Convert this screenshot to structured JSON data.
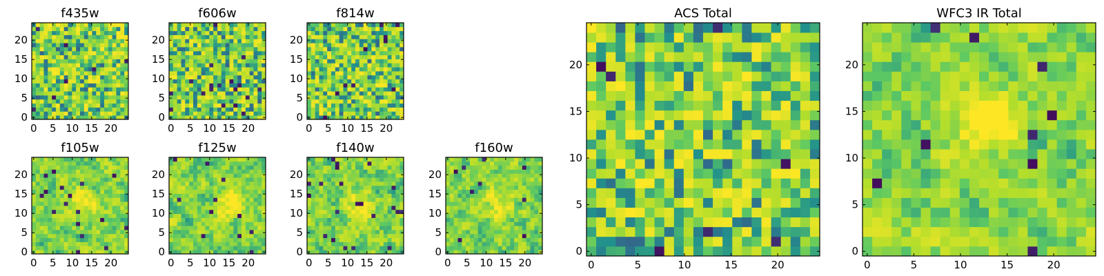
{
  "figure": {
    "colormap": "viridis",
    "colormap_stops": [
      "#440154",
      "#3b528b",
      "#21918c",
      "#5ec962",
      "#b5de2b",
      "#fde725"
    ]
  },
  "chart_data": [
    {
      "id": "f435w",
      "type": "heatmap",
      "title": "f435w",
      "grid_size": 24,
      "xlim": [
        0,
        24
      ],
      "ylim": [
        0,
        24
      ],
      "xticks": [
        0,
        5,
        10,
        15,
        20
      ],
      "yticks": [
        0,
        5,
        10,
        15,
        20
      ],
      "texture": "fine-noise",
      "smooth": 0,
      "seed": 11
    },
    {
      "id": "f606w",
      "type": "heatmap",
      "title": "f606w",
      "grid_size": 24,
      "xlim": [
        0,
        24
      ],
      "ylim": [
        0,
        24
      ],
      "xticks": [
        0,
        5,
        10,
        15,
        20
      ],
      "yticks": [
        0,
        5,
        10,
        15,
        20
      ],
      "texture": "fine-noise",
      "smooth": 0,
      "seed": 23
    },
    {
      "id": "f814w",
      "type": "heatmap",
      "title": "f814w",
      "grid_size": 24,
      "xlim": [
        0,
        24
      ],
      "ylim": [
        0,
        24
      ],
      "xticks": [
        0,
        5,
        10,
        15,
        20
      ],
      "yticks": [
        0,
        5,
        10,
        15,
        20
      ],
      "texture": "fine-noise",
      "smooth": 0,
      "seed": 37
    },
    {
      "id": "f105w",
      "type": "heatmap",
      "title": "f105w",
      "grid_size": 24,
      "xlim": [
        0,
        24
      ],
      "ylim": [
        0,
        24
      ],
      "xticks": [
        0,
        5,
        10,
        15,
        20
      ],
      "yticks": [
        0,
        5,
        10,
        15,
        20
      ],
      "texture": "smooth-noise",
      "smooth": 1,
      "seed": 41,
      "bright_center": [
        12,
        12
      ]
    },
    {
      "id": "f125w",
      "type": "heatmap",
      "title": "f125w",
      "grid_size": 24,
      "xlim": [
        0,
        24
      ],
      "ylim": [
        0,
        24
      ],
      "xticks": [
        0,
        5,
        10,
        15,
        20
      ],
      "yticks": [
        0,
        5,
        10,
        15,
        20
      ],
      "texture": "smooth-noise",
      "smooth": 1,
      "seed": 53,
      "bright_center": [
        14,
        12
      ]
    },
    {
      "id": "f140w",
      "type": "heatmap",
      "title": "f140w",
      "grid_size": 24,
      "xlim": [
        0,
        24
      ],
      "ylim": [
        0,
        24
      ],
      "xticks": [
        0,
        5,
        10,
        15,
        20
      ],
      "yticks": [
        0,
        5,
        10,
        15,
        20
      ],
      "texture": "smooth-noise",
      "smooth": 1,
      "seed": 67,
      "bright_center": [
        13,
        12
      ]
    },
    {
      "id": "f160w",
      "type": "heatmap",
      "title": "f160w",
      "grid_size": 24,
      "xlim": [
        0,
        24
      ],
      "ylim": [
        0,
        24
      ],
      "xticks": [
        0,
        5,
        10,
        15,
        20
      ],
      "yticks": [
        0,
        5,
        10,
        15,
        20
      ],
      "texture": "smooth-noise",
      "smooth": 1,
      "seed": 79,
      "bright_center": [
        13,
        12
      ]
    },
    {
      "id": "acs-total",
      "type": "heatmap",
      "title": "ACS Total",
      "grid_size": 24,
      "xlim": [
        0,
        24
      ],
      "ylim": [
        0,
        24
      ],
      "xticks": [
        0,
        5,
        10,
        15,
        20
      ],
      "yticks": [
        0,
        5,
        10,
        15,
        20
      ],
      "texture": "fine-noise",
      "smooth": 0,
      "seed": 97
    },
    {
      "id": "wfc3-ir-total",
      "type": "heatmap",
      "title": "WFC3 IR Total",
      "grid_size": 24,
      "xlim": [
        0,
        24
      ],
      "ylim": [
        0,
        24
      ],
      "xticks": [
        0,
        5,
        10,
        15,
        20
      ],
      "yticks": [
        0,
        5,
        10,
        15,
        20
      ],
      "texture": "smooth-noise",
      "smooth": 1,
      "seed": 103,
      "bright_center": [
        12,
        13
      ]
    }
  ]
}
